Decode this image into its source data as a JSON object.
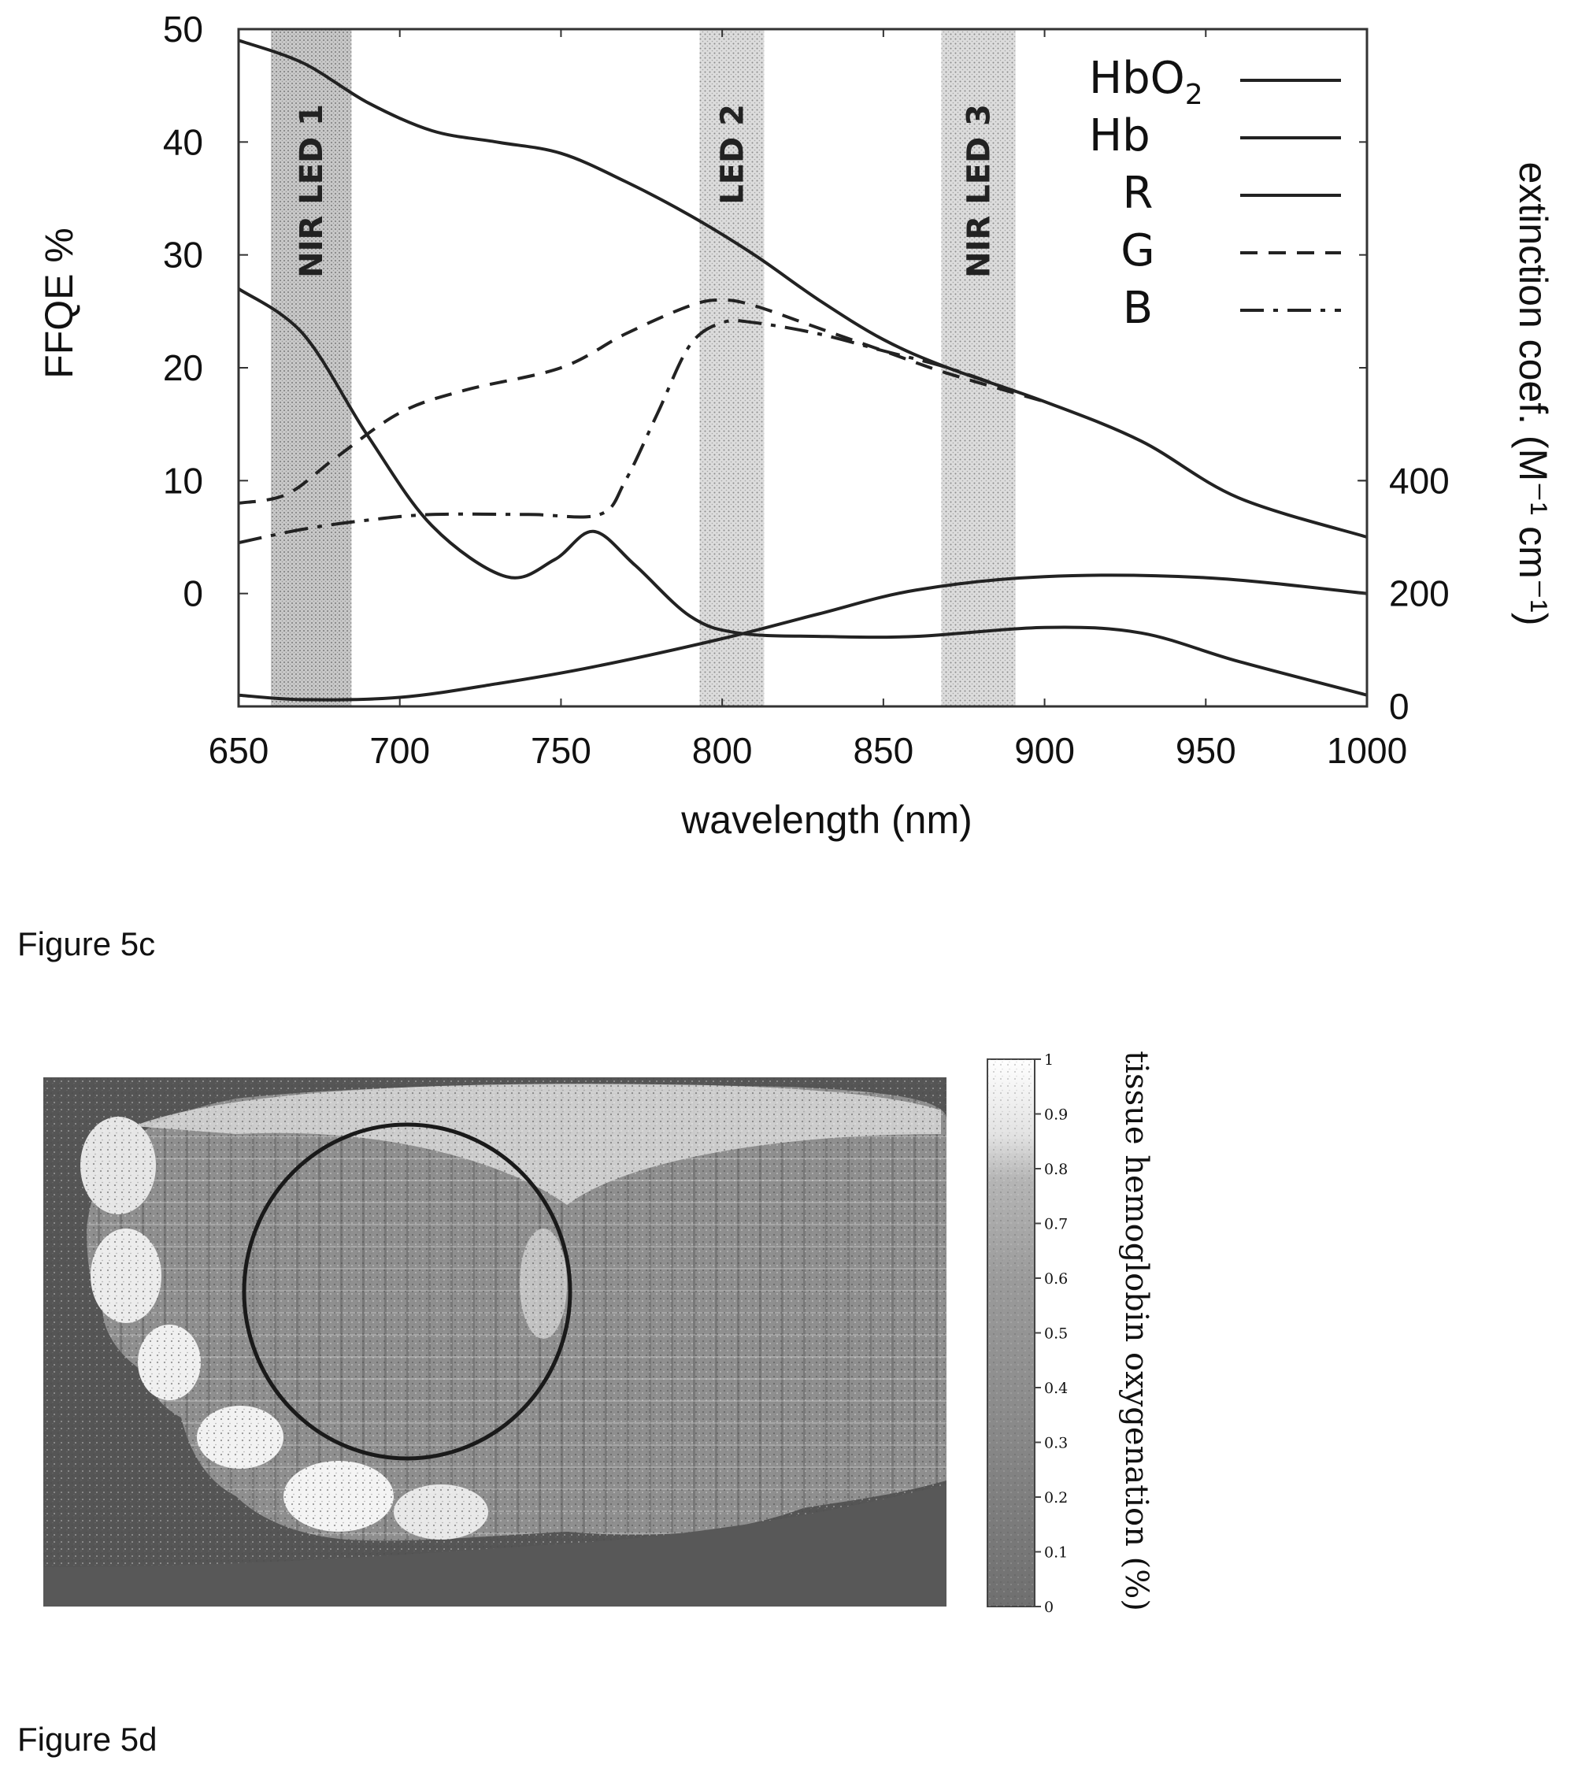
{
  "figure_5c_caption": "Figure 5c",
  "figure_5d_caption": "Figure 5d",
  "chart_data": [
    {
      "type": "line",
      "xlabel": "wavelength (nm)",
      "ylabel": "FFQE %",
      "y2label": "extinction coef. (M⁻¹ cm⁻¹)",
      "xlim": [
        650,
        1000
      ],
      "ylim": [
        -10,
        50
      ],
      "x_ticks": [
        650,
        700,
        750,
        800,
        850,
        900,
        950,
        1000
      ],
      "y_ticks": [
        50,
        40,
        30,
        20,
        10,
        0
      ],
      "y2_ticks": [
        {
          "label": "400",
          "at_left_axis_value": 10
        },
        {
          "label": "200",
          "at_left_axis_value": 0
        },
        {
          "label": "0",
          "at_left_axis_value": -10
        }
      ],
      "bands": [
        {
          "label": "NIR LED 1",
          "range": [
            660,
            685
          ]
        },
        {
          "label": "LED 2",
          "range": [
            793,
            813
          ]
        },
        {
          "label": "NIR LED 3",
          "range": [
            868,
            891
          ]
        }
      ],
      "series": [
        {
          "name": "HbO2",
          "style": "solid",
          "color": "#222222",
          "x": [
            650,
            670,
            700,
            730,
            760,
            800,
            830,
            860,
            900,
            950,
            1000
          ],
          "y": [
            -9,
            -9.4,
            -9.2,
            -8.0,
            -6.5,
            -4.0,
            -1.8,
            0.3,
            1.5,
            1.4,
            0.0
          ]
        },
        {
          "name": "Hb",
          "style": "solid",
          "color": "#222222",
          "x": [
            650,
            670,
            690,
            710,
            733,
            748,
            760,
            773,
            790,
            805,
            830,
            860,
            900,
            930,
            960,
            1000
          ],
          "y": [
            27,
            23,
            14,
            6,
            1.5,
            3,
            5.5,
            2.5,
            -2,
            -3.5,
            -3.8,
            -3.8,
            -3.0,
            -3.5,
            -6.0,
            -9.0
          ]
        },
        {
          "name": "R",
          "style": "solid",
          "color": "#222222",
          "x": [
            650,
            670,
            690,
            710,
            730,
            750,
            770,
            790,
            810,
            830,
            850,
            870,
            900,
            930,
            960,
            1000
          ],
          "y": [
            49,
            47,
            43.5,
            41.0,
            40.0,
            39.0,
            36.5,
            33.5,
            30.0,
            26.0,
            22.5,
            20.0,
            17.0,
            13.5,
            8.5,
            5.0
          ]
        },
        {
          "name": "G",
          "style": "dash",
          "color": "#222222",
          "x": [
            650,
            665,
            680,
            700,
            720,
            750,
            770,
            790,
            800,
            810,
            830,
            850,
            870,
            900
          ],
          "y": [
            8,
            8.8,
            12,
            16,
            18,
            20,
            23,
            25.5,
            26,
            25.5,
            23.5,
            21.5,
            19.5,
            17.0
          ]
        },
        {
          "name": "B",
          "style": "dashdot",
          "color": "#222222",
          "x": [
            650,
            670,
            690,
            710,
            740,
            762,
            770,
            780,
            790,
            800,
            810,
            830,
            850,
            870,
            890
          ],
          "y": [
            4.5,
            5.7,
            6.5,
            7.0,
            7.0,
            7.0,
            10,
            16,
            22,
            24,
            24,
            23,
            21.5,
            20.0,
            18.0
          ]
        }
      ],
      "legend": {
        "position": "top-right",
        "entries": [
          {
            "label": "HbO",
            "sub": "2",
            "style": "solid"
          },
          {
            "label": "Hb",
            "sub": "",
            "style": "solid"
          },
          {
            "label": "R",
            "sub": "",
            "style": "solid"
          },
          {
            "label": "G",
            "sub": "",
            "style": "dash"
          },
          {
            "label": "B",
            "sub": "",
            "style": "dashdot"
          }
        ]
      },
      "grid": false
    },
    {
      "type": "heatmap",
      "colorbar": {
        "label": "tissue hemoglobin oxygenation (%)",
        "ticks": [
          "0",
          "0.1",
          "0.2",
          "0.3",
          "0.4",
          "0.5",
          "0.6",
          "0.7",
          "0.8",
          "0.9",
          "1"
        ],
        "range": [
          0,
          1
        ]
      },
      "annotation": "circle region of interest"
    }
  ]
}
